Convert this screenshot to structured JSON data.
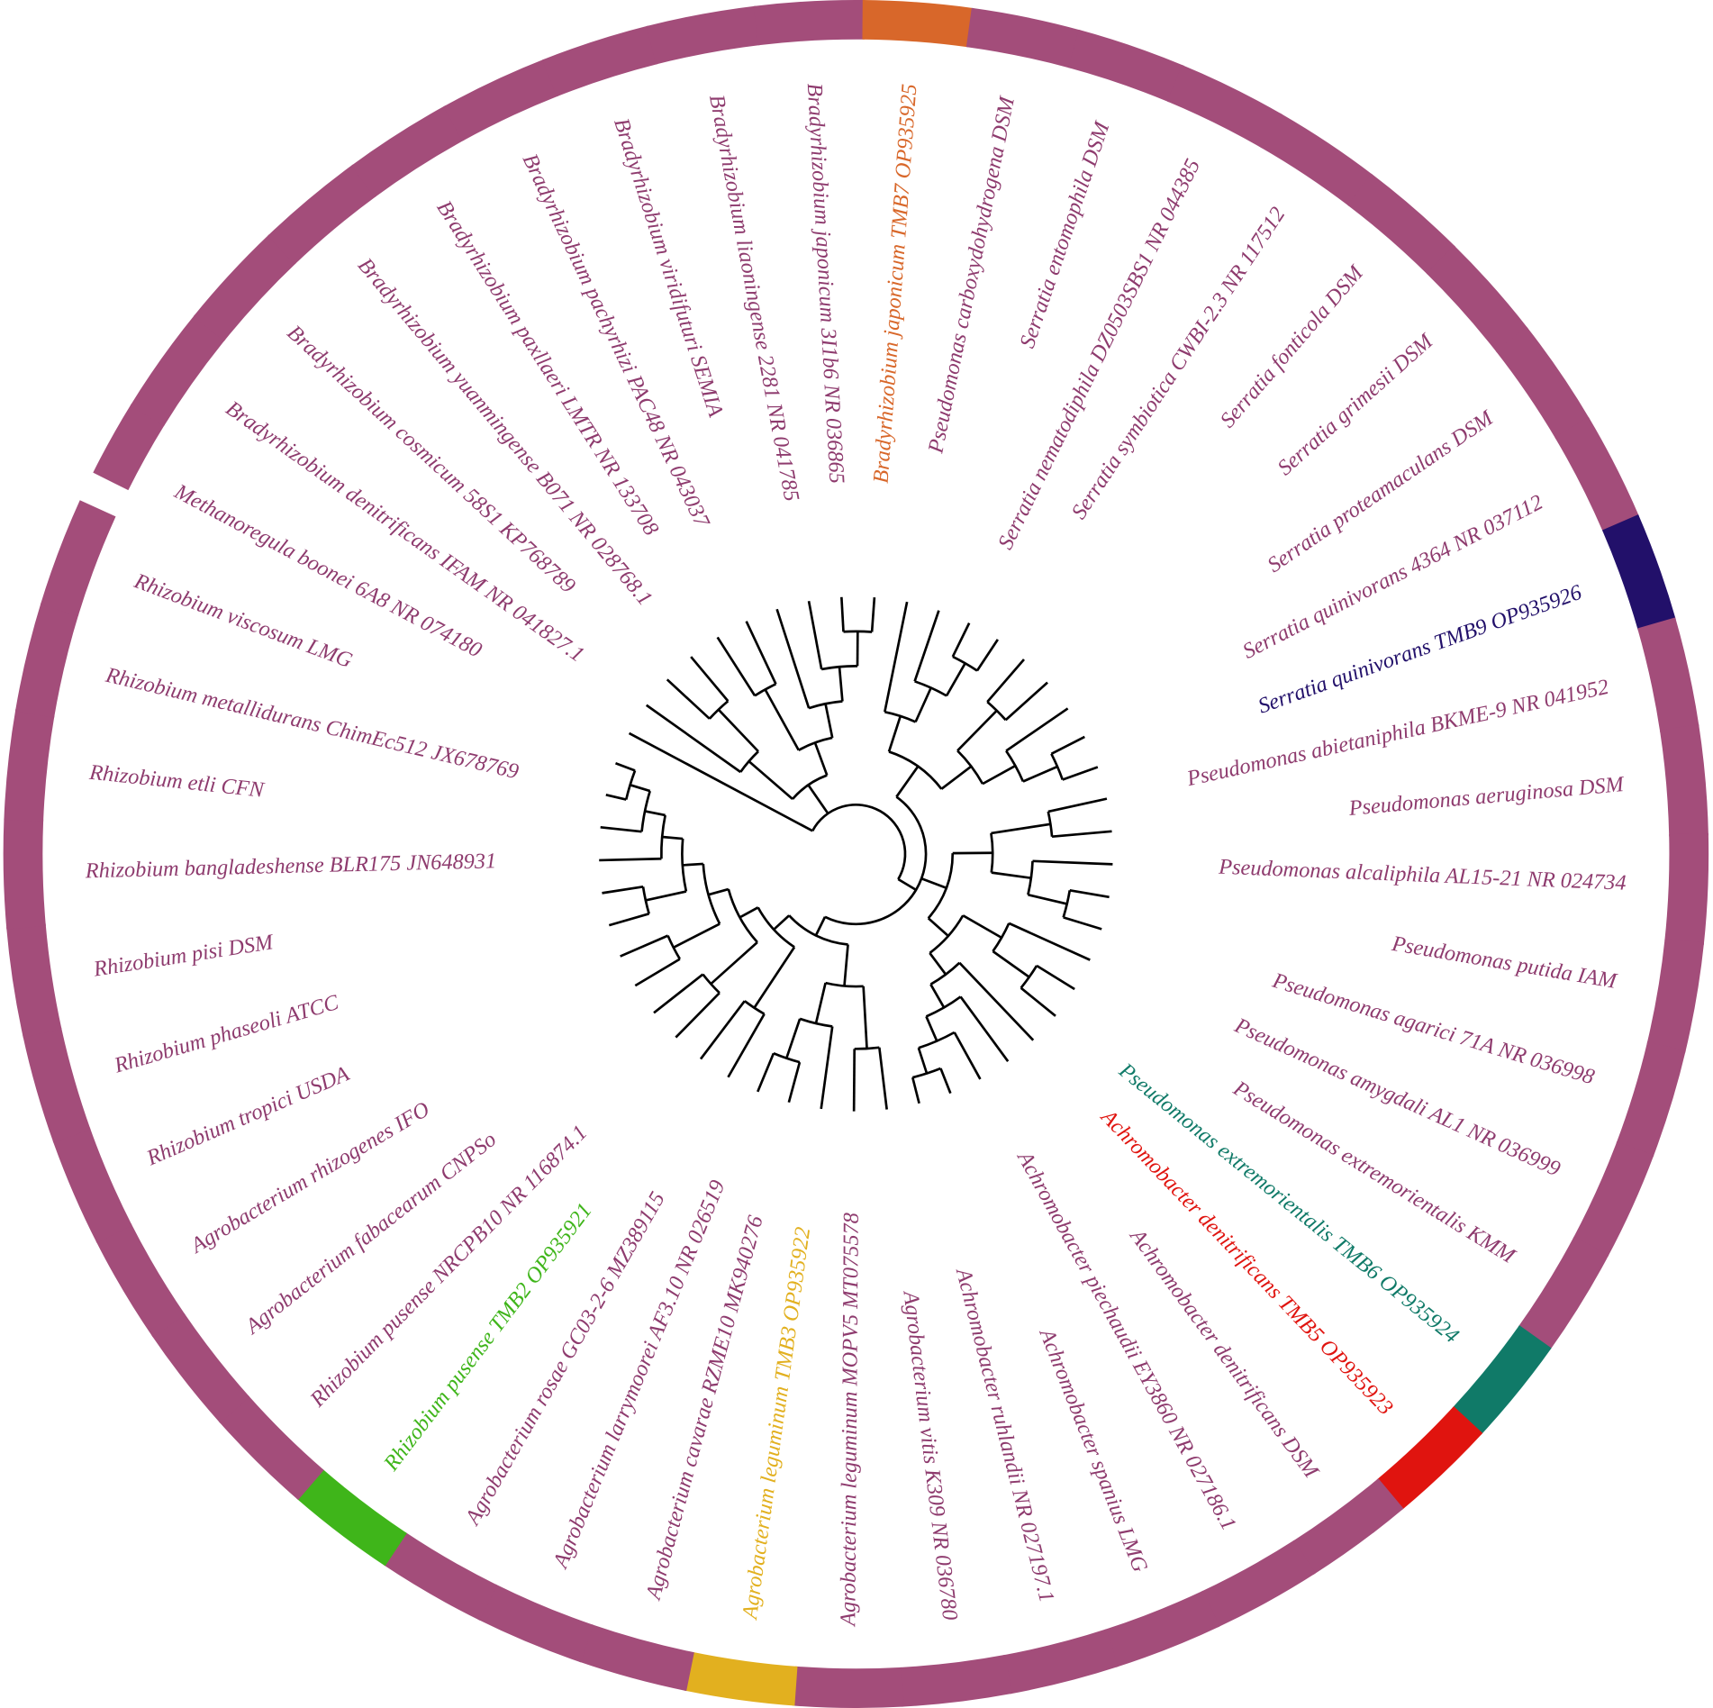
{
  "leaves": [
    {
      "label": "Methanoregula boonei 6A8 NR 074180",
      "color": "#8e3b6e"
    },
    {
      "label": "Bradyrhizobium denitrificans IFAM NR 041827.1",
      "color": "#8e3b6e"
    },
    {
      "label": "Bradyrhizobium cosmicum 58S1 KP768789",
      "color": "#8e3b6e"
    },
    {
      "label": "Bradyrhizobium yuanmingense B071 NR 028768.1",
      "color": "#8e3b6e"
    },
    {
      "label": "Bradyrhizobium paxllaeri LMTR NR 133708",
      "color": "#8e3b6e"
    },
    {
      "label": "Bradyrhizobium pachyrhizi PAC48 NR 043037",
      "color": "#8e3b6e"
    },
    {
      "label": "Bradyrhizobium viridifuturi SEMIA",
      "color": "#8e3b6e"
    },
    {
      "label": "Bradyrhizobium liaoningense 2281 NR 041785",
      "color": "#8e3b6e"
    },
    {
      "label": "Bradyrhizobium japonicum 3I1b6 NR 036865",
      "color": "#8e3b6e"
    },
    {
      "label": "Bradyrhizobium japonicum TMB7 OP935925",
      "color": "#d8672a"
    },
    {
      "label": "Pseudomonas carboxydohydrogena DSM",
      "color": "#8e3b6e"
    },
    {
      "label": "Serratia entomophila DSM",
      "color": "#8e3b6e"
    },
    {
      "label": "Serratia nematodiphila DZ0503SBS1 NR 044385",
      "color": "#8e3b6e"
    },
    {
      "label": "Serratia symbiotica CWBI-2.3 NR 117512",
      "color": "#8e3b6e"
    },
    {
      "label": "Serratia fonticola DSM",
      "color": "#8e3b6e"
    },
    {
      "label": "Serratia grimesii DSM",
      "color": "#8e3b6e"
    },
    {
      "label": "Serratia proteamaculans DSM",
      "color": "#8e3b6e"
    },
    {
      "label": "Serratia quinivorans 4364 NR 037112",
      "color": "#8e3b6e"
    },
    {
      "label": "Serratia quinivorans TMB9 OP935926",
      "color": "#22106a"
    },
    {
      "label": "Pseudomonas abietaniphila BKME-9 NR 041952",
      "color": "#8e3b6e"
    },
    {
      "label": "Pseudomonas aeruginosa DSM",
      "color": "#8e3b6e"
    },
    {
      "label": "Pseudomonas alcaliphila AL15-21 NR 024734",
      "color": "#8e3b6e"
    },
    {
      "label": "Pseudomonas putida IAM",
      "color": "#8e3b6e"
    },
    {
      "label": "Pseudomonas agarici 71A NR 036998",
      "color": "#8e3b6e"
    },
    {
      "label": "Pseudomonas amygdali AL1 NR 036999",
      "color": "#8e3b6e"
    },
    {
      "label": "Pseudomonas extremorientalis KMM",
      "color": "#8e3b6e"
    },
    {
      "label": "Pseudomonas extremorientalis TMB6 OP935924",
      "color": "#107a68"
    },
    {
      "label": "Achromobacter denitrificans TMB5 OP935923",
      "color": "#e0140f"
    },
    {
      "label": "Achromobacter denitrificans DSM",
      "color": "#8e3b6e"
    },
    {
      "label": "Achromobacter piechaudii EY3860 NR 027186.1",
      "color": "#8e3b6e"
    },
    {
      "label": "Achromobacter spanius LMG",
      "color": "#8e3b6e"
    },
    {
      "label": "Achromobacter ruhlandii NR 027197.1",
      "color": "#8e3b6e"
    },
    {
      "label": "Agrobacterium vitis K309 NR 036780",
      "color": "#8e3b6e"
    },
    {
      "label": "Agrobacterium leguminum MOPV5 MT075578",
      "color": "#8e3b6e"
    },
    {
      "label": "Agrobacterium leguminum TMB3 OP935922",
      "color": "#e2b01f"
    },
    {
      "label": "Agrobacterium cavarae RZME10 MK940276",
      "color": "#8e3b6e"
    },
    {
      "label": "Agrobacterium larrymoorei AF3.10 NR 026519",
      "color": "#8e3b6e"
    },
    {
      "label": "Agrobacterium rosae GC03-2-6 MZ389115",
      "color": "#8e3b6e"
    },
    {
      "label": "Rhizobium pusense TMB2 OP935921",
      "color": "#3fb51a"
    },
    {
      "label": "Rhizobium pusense NRCPB10 NR 116874.1",
      "color": "#8e3b6e"
    },
    {
      "label": "Agrobacterium fabacearum CNPSo",
      "color": "#8e3b6e"
    },
    {
      "label": "Agrobacterium rhizogenes IFO",
      "color": "#8e3b6e"
    },
    {
      "label": "Rhizobium tropici USDA",
      "color": "#8e3b6e"
    },
    {
      "label": "Rhizobium phaseoli ATCC",
      "color": "#8e3b6e"
    },
    {
      "label": "Rhizobium pisi DSM",
      "color": "#8e3b6e"
    },
    {
      "label": "Rhizobium bangladeshense BLR175 JN648931",
      "color": "#8e3b6e"
    },
    {
      "label": "Rhizobium etli CFN",
      "color": "#8e3b6e"
    },
    {
      "label": "Rhizobium metallidurans ChimEc512 JX678769",
      "color": "#8e3b6e"
    },
    {
      "label": "Rhizobium viscosum LMG",
      "color": "#8e3b6e"
    }
  ]
}
